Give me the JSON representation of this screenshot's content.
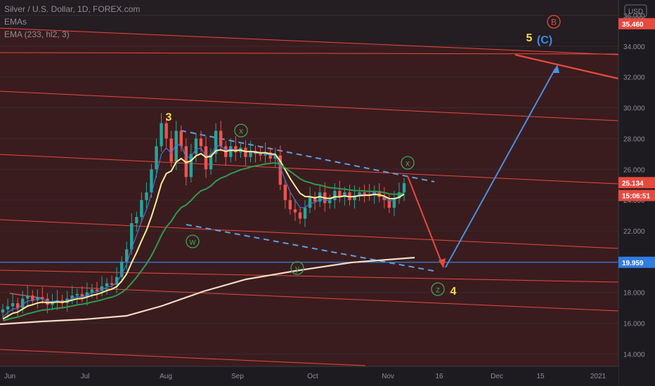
{
  "header": {
    "symbol_line": "Silver / U.S. Dollar, 1D, FOREX.com",
    "indicator_1": "EMAs",
    "indicator_2": "EMA (233, hl2, 3)"
  },
  "currency_badge": "USD",
  "colors": {
    "background": "#1e1b20",
    "channel_fill": "#3a1c1e",
    "red_line": "#e8493f",
    "blue_line": "#2f7de1",
    "dashed_blue": "#5aa0e6",
    "ema_yellow": "#f7ef9a",
    "ema_green": "#2f9a4f",
    "ema_white": "#f3dcc4",
    "ema_blue": "#3b78d8",
    "candle_up": "#26a69a",
    "candle_down": "#ef5350",
    "label_yellow": "#f0dc50",
    "label_green": "#3aa55c",
    "label_blue": "#3d8be0"
  },
  "chart_data": {
    "type": "candlestick",
    "title": "Silver / U.S. Dollar, 1D, FOREX.com",
    "y_axis": {
      "ticks": [
        "14.000",
        "16.000",
        "18.000",
        "20.000",
        "22.000",
        "24.000",
        "26.000",
        "28.000",
        "30.000",
        "32.000",
        "34.000",
        "36.000"
      ],
      "range": [
        13.2,
        37.0
      ]
    },
    "x_axis": {
      "ticks": [
        "Jun",
        "Jul",
        "Aug",
        "Sep",
        "Oct",
        "Nov",
        "16",
        "Dec",
        "15",
        "2021"
      ]
    },
    "price_labels": [
      {
        "text": "35.460",
        "value": 35.46,
        "color": "#e8493f"
      },
      {
        "text": "25.134",
        "value": 25.134,
        "color": "#e8493f"
      },
      {
        "text": "15:06:51",
        "value": 24.3,
        "color": "#e8493f"
      },
      {
        "text": "19.959",
        "value": 19.959,
        "color": "#2f7de1"
      }
    ],
    "wave_labels": [
      {
        "text": "3",
        "style": "yellow"
      },
      {
        "text": "5",
        "style": "yellow"
      },
      {
        "text": "4",
        "style": "yellow"
      },
      {
        "text": "x",
        "style": "circle-green"
      },
      {
        "text": "x",
        "style": "circle-green"
      },
      {
        "text": "w",
        "style": "circle-green"
      },
      {
        "text": "y",
        "style": "circle-green"
      },
      {
        "text": "z",
        "style": "circle-green"
      },
      {
        "text": "B",
        "style": "circle-red"
      },
      {
        "text": "(C)",
        "style": "blue"
      }
    ],
    "ohlc_closes": [
      16.9,
      17.1,
      17.3,
      17.0,
      17.6,
      17.8,
      17.5,
      17.7,
      17.6,
      17.2,
      17.4,
      17.5,
      17.3,
      17.6,
      17.8,
      17.9,
      17.7,
      18.0,
      18.2,
      18.1,
      18.4,
      18.6,
      18.5,
      19.0,
      20.0,
      20.8,
      22.5,
      22.9,
      24.0,
      24.5,
      26.0,
      27.5,
      29.0,
      28.0,
      26.5,
      28.5,
      27.5,
      25.5,
      27.0,
      28.0,
      27.5,
      26.0,
      27.0,
      28.5,
      27.5,
      26.8,
      27.5,
      27.1,
      27.4,
      26.8,
      27.2,
      27.0,
      26.9,
      27.1,
      26.7,
      26.9,
      25.0,
      24.0,
      23.4,
      23.2,
      22.8,
      23.5,
      24.2,
      23.9,
      24.5,
      23.8,
      24.0,
      24.6,
      24.2,
      24.5,
      24.0,
      24.3,
      24.5,
      24.4,
      24.3,
      24.6,
      24.2,
      24.0,
      23.5,
      24.1,
      24.5,
      25.1
    ]
  }
}
